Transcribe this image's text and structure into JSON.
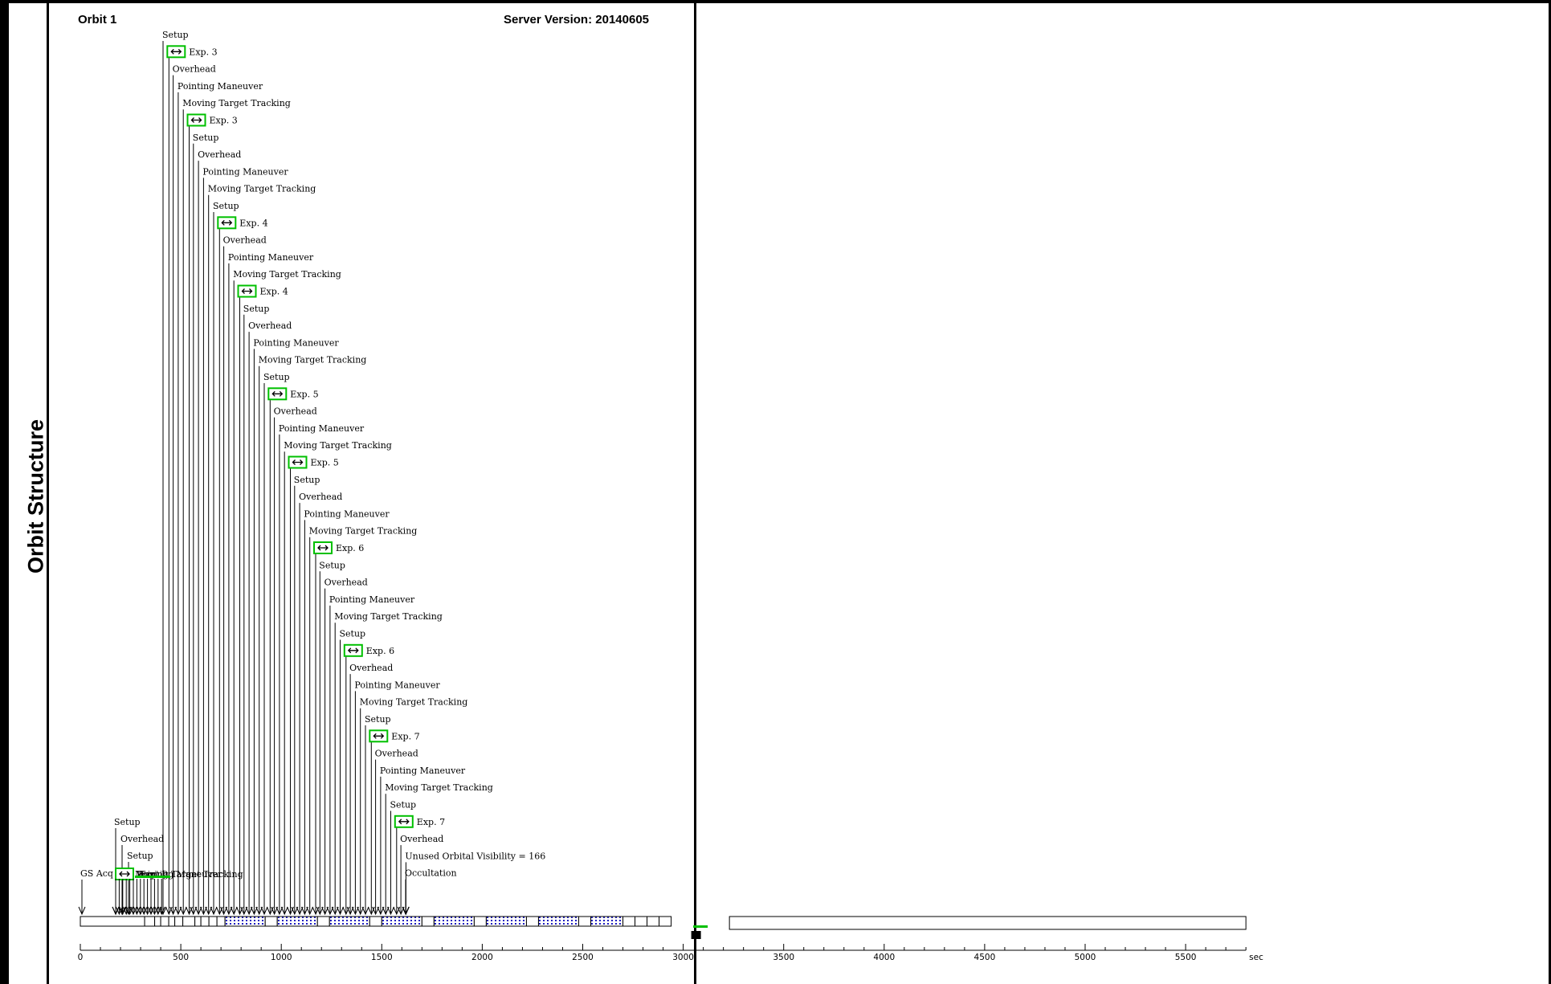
{
  "panel_title": "Orbit Structure",
  "orbit_label": "Orbit 1",
  "server_version": "Server Version: 20140605",
  "colors": {
    "accent": "#00c000",
    "pattern": "#2020c0"
  },
  "axis": {
    "unit": "sec",
    "ticks": [
      "0",
      "500",
      "1000",
      "1500",
      "2000",
      "2500",
      "3000",
      "3500",
      "4000",
      "4500",
      "5000",
      "5500"
    ],
    "xlim": [
      0,
      5800
    ]
  },
  "bottom_events": [
    {
      "label": "Setup"
    },
    {
      "label": "Overhead"
    },
    {
      "label": "Setup"
    },
    {
      "label": "GS Acq"
    }
  ],
  "cascade_events": [
    {
      "label": "Setup"
    },
    {
      "label": "Exp. 3",
      "exposure": true
    },
    {
      "label": "Overhead"
    },
    {
      "label": "Pointing Maneuver"
    },
    {
      "label": "Moving Target Tracking"
    },
    {
      "label": "Exp. 3",
      "exposure": true
    },
    {
      "label": "Setup"
    },
    {
      "label": "Overhead"
    },
    {
      "label": "Pointing Maneuver"
    },
    {
      "label": "Moving Target Tracking"
    },
    {
      "label": "Setup"
    },
    {
      "label": "Exp. 4",
      "exposure": true
    },
    {
      "label": "Overhead"
    },
    {
      "label": "Pointing Maneuver"
    },
    {
      "label": "Moving Target Tracking"
    },
    {
      "label": "Exp. 4",
      "exposure": true
    },
    {
      "label": "Setup"
    },
    {
      "label": "Overhead"
    },
    {
      "label": "Pointing Maneuver"
    },
    {
      "label": "Moving Target Tracking"
    },
    {
      "label": "Setup"
    },
    {
      "label": "Exp. 5",
      "exposure": true
    },
    {
      "label": "Overhead"
    },
    {
      "label": "Pointing Maneuver"
    },
    {
      "label": "Moving Target Tracking"
    },
    {
      "label": "Exp. 5",
      "exposure": true
    },
    {
      "label": "Setup"
    },
    {
      "label": "Overhead"
    },
    {
      "label": "Pointing Maneuver"
    },
    {
      "label": "Moving Target Tracking"
    },
    {
      "label": "Exp. 6",
      "exposure": true
    },
    {
      "label": "Setup"
    },
    {
      "label": "Overhead"
    },
    {
      "label": "Pointing Maneuver"
    },
    {
      "label": "Moving Target Tracking"
    },
    {
      "label": "Setup"
    },
    {
      "label": "Exp. 6",
      "exposure": true
    },
    {
      "label": "Overhead"
    },
    {
      "label": "Pointing Maneuver"
    },
    {
      "label": "Moving Target Tracking"
    },
    {
      "label": "Setup"
    },
    {
      "label": "Exp. 7",
      "exposure": true
    },
    {
      "label": "Overhead"
    },
    {
      "label": "Pointing Maneuver"
    },
    {
      "label": "Moving Target Tracking"
    },
    {
      "label": "Setup"
    },
    {
      "label": "Exp. 7",
      "exposure": true
    },
    {
      "label": "Overhead"
    },
    {
      "label": "Unused Orbital Visibility = 166"
    },
    {
      "label": "Occultation"
    }
  ]
}
